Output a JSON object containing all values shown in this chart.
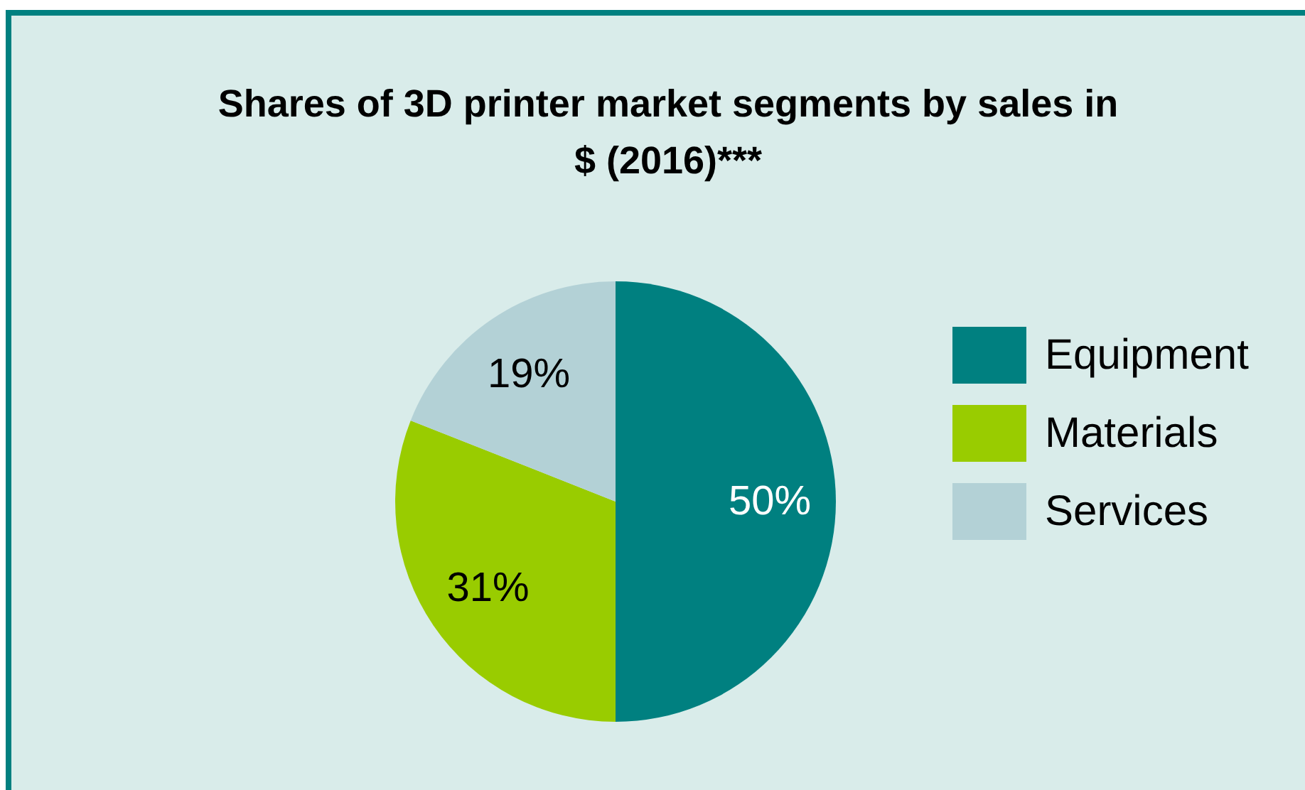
{
  "chart_data": {
    "type": "pie",
    "title": "Shares of 3D printer market segments by sales in $ (2016)***",
    "categories": [
      "Equipment",
      "Materials",
      "Services"
    ],
    "values": [
      50,
      31,
      19
    ],
    "colors": [
      "#008080",
      "#99cc00",
      "#b3d1d6"
    ],
    "value_labels": [
      "50%",
      "31%",
      "19%"
    ],
    "legend": "right"
  }
}
